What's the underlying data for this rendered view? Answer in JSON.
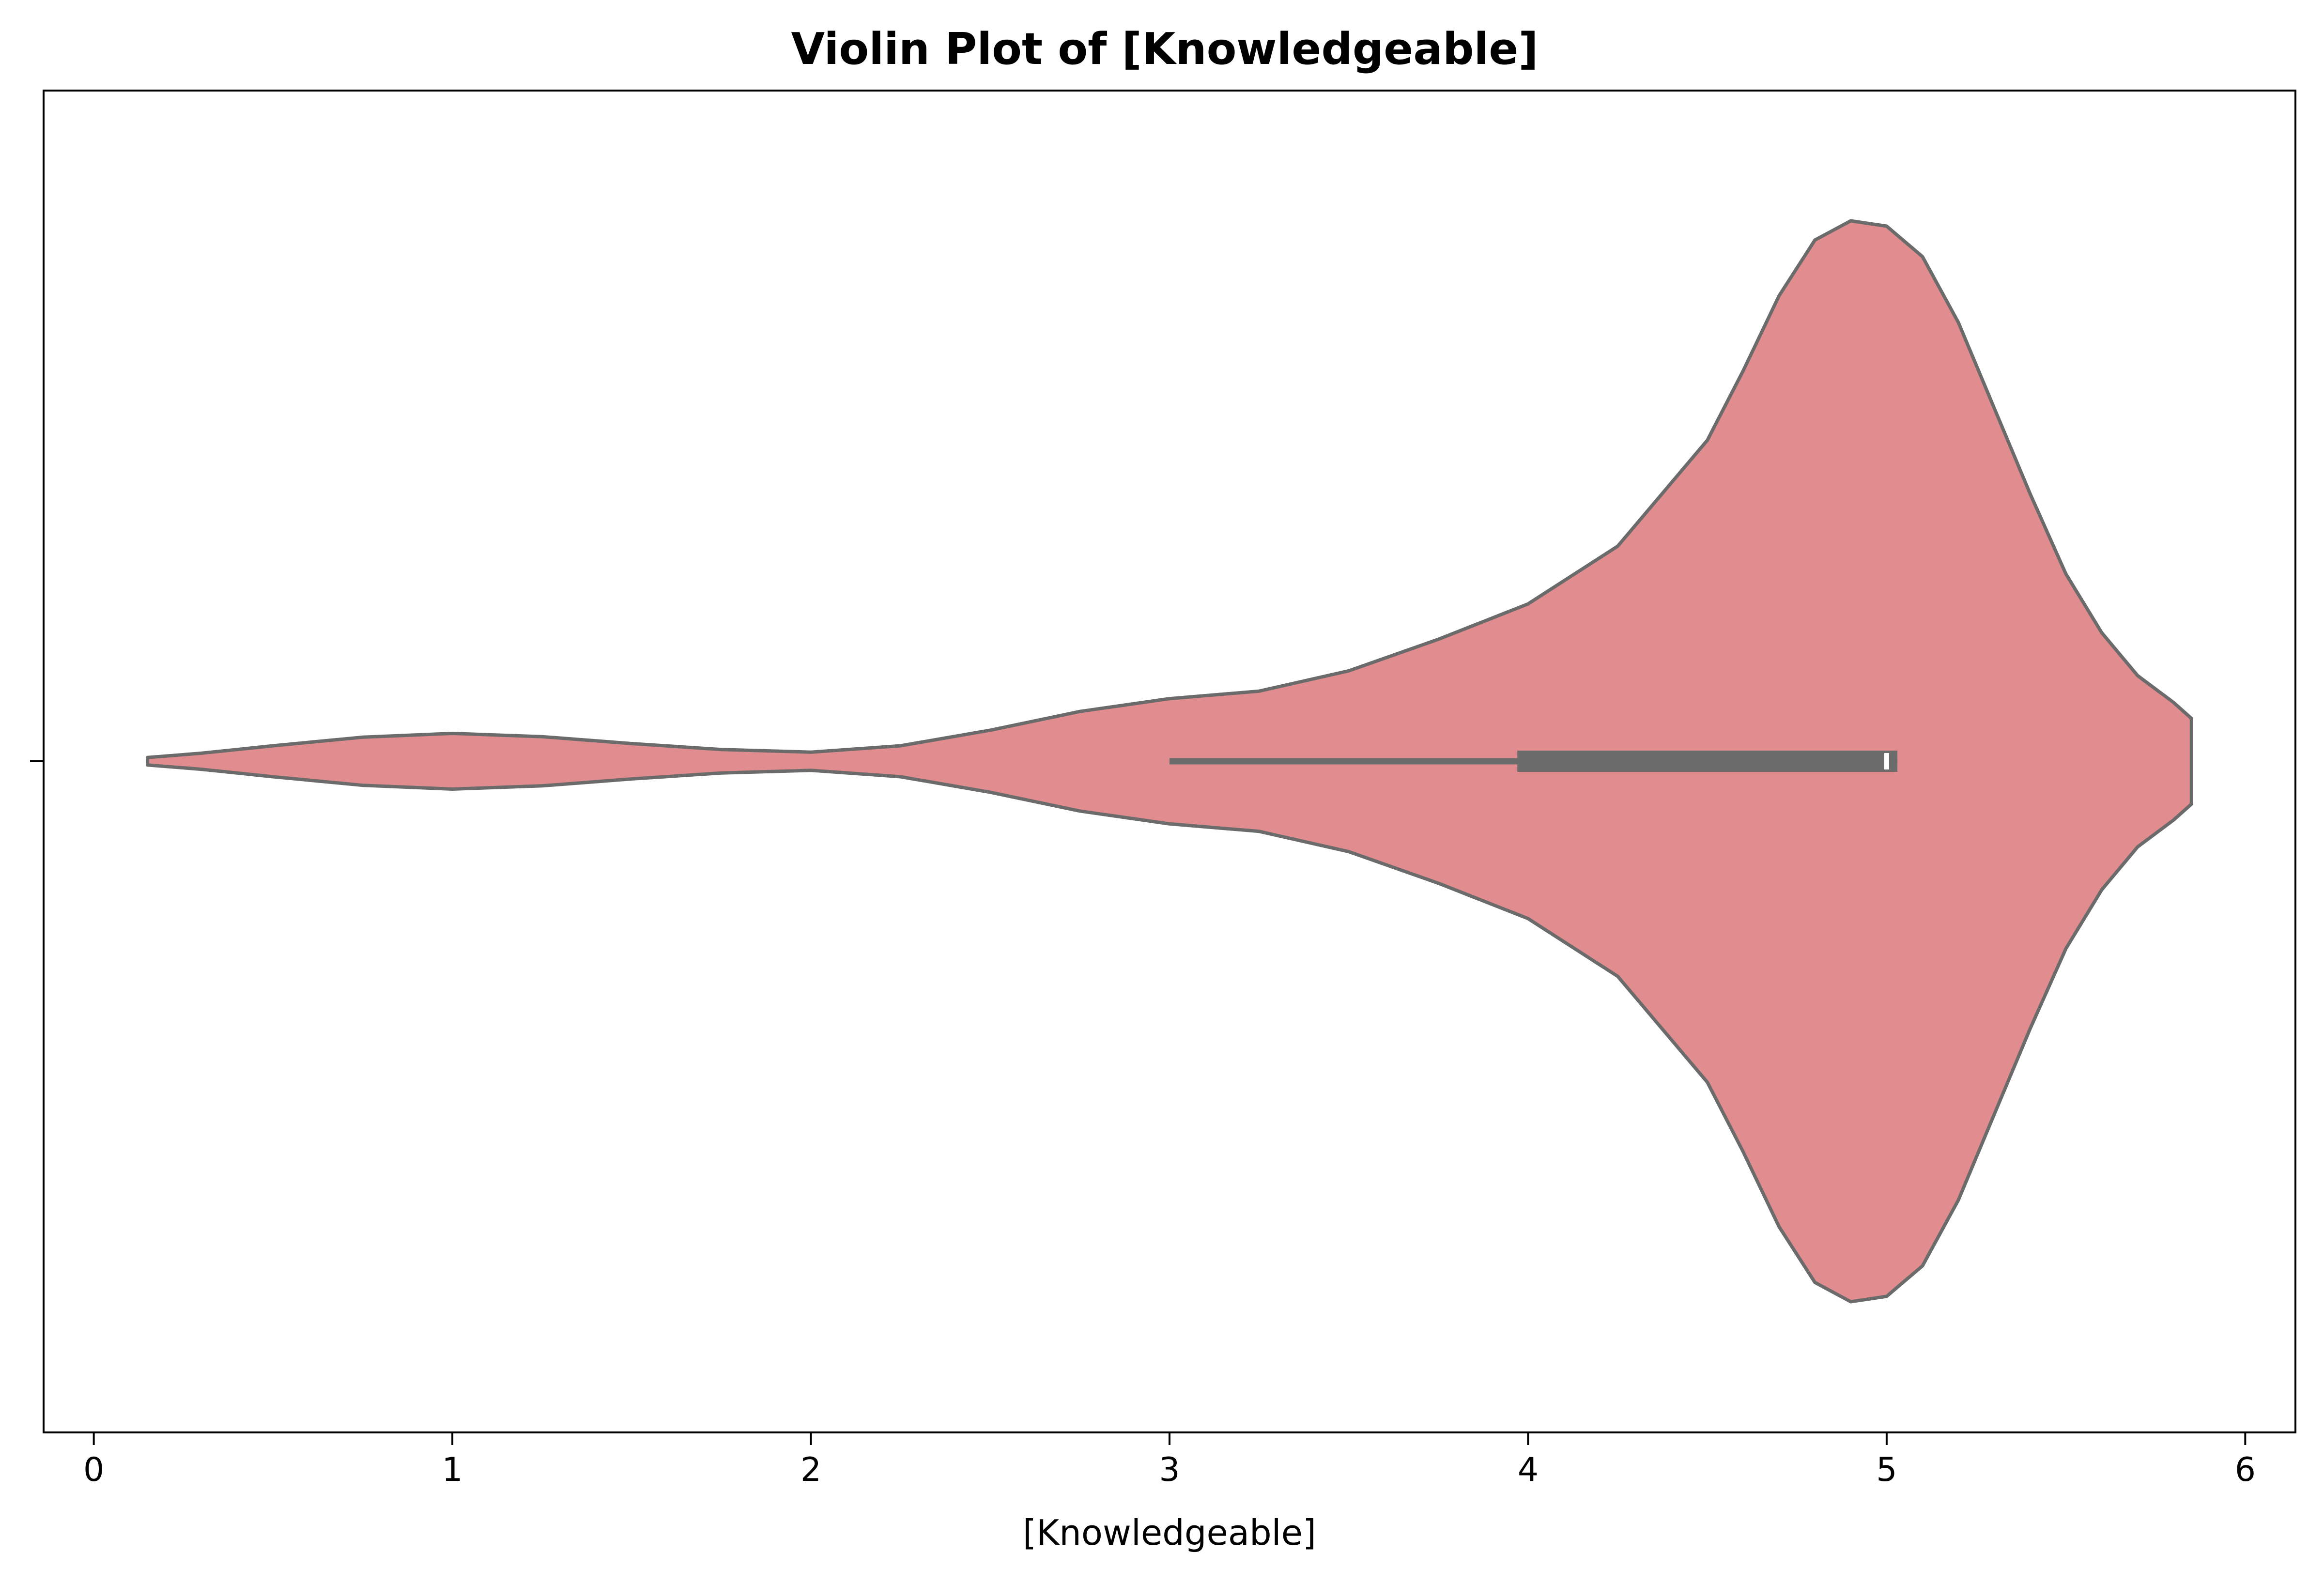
{
  "chart_data": {
    "type": "violin",
    "title": "Violin Plot of [Knowledgeable]",
    "xlabel": "[Knowledgeable]",
    "ylabel": "",
    "xlim": [
      -0.14,
      6.14
    ],
    "xticks": [
      0,
      1,
      2,
      3,
      4,
      5,
      6
    ],
    "xtick_labels": [
      "0",
      "1",
      "2",
      "3",
      "4",
      "5",
      "6"
    ],
    "grid": false,
    "fill_color": "#e18c8e",
    "line_color": "#6b6b6b",
    "density": {
      "x": [
        0.15,
        0.3,
        0.5,
        0.75,
        1.0,
        1.25,
        1.5,
        1.75,
        2.0,
        2.25,
        2.5,
        2.75,
        3.0,
        3.25,
        3.5,
        3.75,
        4.0,
        4.25,
        4.5,
        4.6,
        4.7,
        4.8,
        4.9,
        5.0,
        5.1,
        5.2,
        5.3,
        5.4,
        5.5,
        5.6,
        5.7,
        5.8,
        5.85
      ],
      "half_width": [
        0.007,
        0.015,
        0.029,
        0.045,
        0.052,
        0.046,
        0.033,
        0.022,
        0.017,
        0.029,
        0.058,
        0.093,
        0.117,
        0.131,
        0.169,
        0.228,
        0.294,
        0.402,
        0.6,
        0.73,
        0.87,
        0.974,
        1.01,
        1.0,
        0.943,
        0.82,
        0.66,
        0.5,
        0.35,
        0.24,
        0.16,
        0.11,
        0.08
      ]
    },
    "box": {
      "whisker_low": 3.0,
      "q1": 3.97,
      "median": 5.0,
      "q3": 5.03,
      "whisker_high": 5.03
    }
  }
}
